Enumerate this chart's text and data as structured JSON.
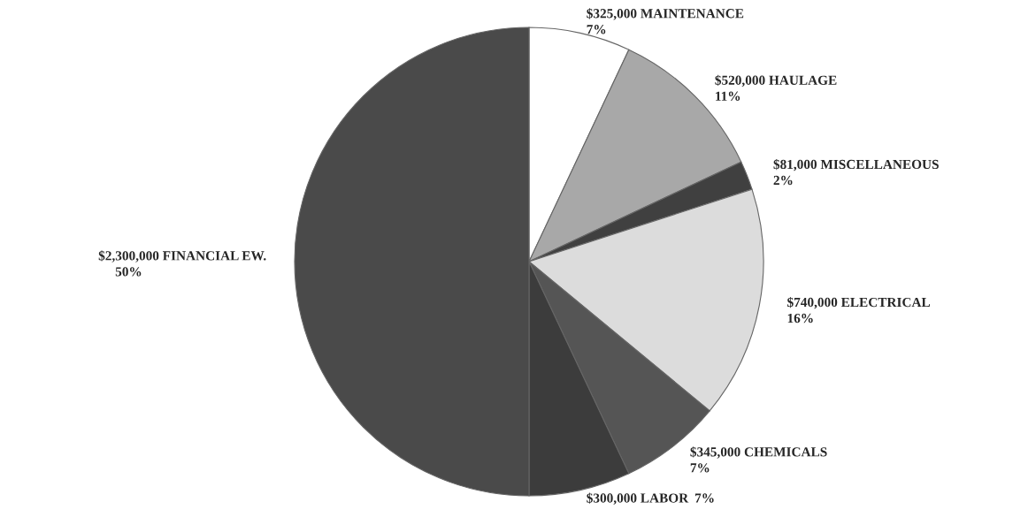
{
  "chart_data": {
    "type": "pie",
    "categories": [
      "$325,000 MAINTENANCE",
      "$520,000 HAULAGE",
      "$81,000 MISCELLANEOUS",
      "$740,000 ELECTRICAL",
      "$345,000 CHEMICALS",
      "$300,000 LABOR",
      "$2,300,000 FINANCIAL EW."
    ],
    "values": [
      7,
      11,
      2,
      16,
      7,
      7,
      50
    ],
    "value_labels": [
      "7%",
      "11%",
      "2%",
      "16%",
      "7%",
      "7%",
      "50%"
    ],
    "colors": [
      "#ffffff",
      "#a8a8a8",
      "#404040",
      "#dcdcdc",
      "#555555",
      "#3c3c3c",
      "#4a4a4a"
    ]
  }
}
